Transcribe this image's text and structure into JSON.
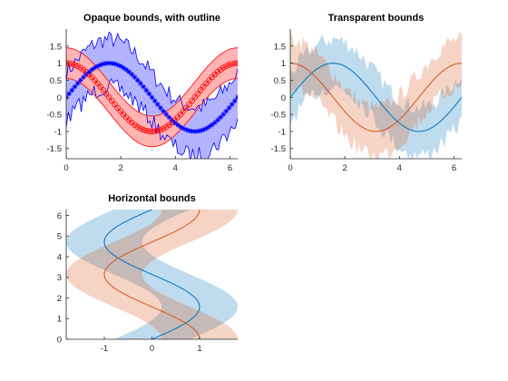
{
  "colors": {
    "blue": "#0000ff",
    "red": "#ff0000",
    "blue_fill": "#b3b3ff",
    "red_fill": "#ffb3b3",
    "mat_blue": "#0072bd",
    "mat_orange": "#d95319",
    "mat_blue_fill": "#bcdcef",
    "mat_orange_fill": "#f7d1c3"
  },
  "chart_data": [
    {
      "type": "line",
      "title": "Opaque bounds, with outline",
      "xlim": [
        0,
        6.283
      ],
      "ylim": [
        -1.8,
        2.0
      ],
      "xticks": [
        "0",
        "2",
        "4",
        "6"
      ],
      "yticks": [
        "-1.5",
        "-1",
        "-0.5",
        "0",
        "0.5",
        "1",
        "1.5"
      ],
      "band_style": "opaque-with-outline",
      "series": [
        {
          "function": "sin(x)",
          "marker": "star",
          "color": "blue",
          "band": "noisy, half-width approx 0.5–0.9",
          "x": [
            0,
            0.314,
            0.628,
            0.942,
            1.257,
            1.571,
            1.885,
            2.199,
            2.513,
            2.827,
            3.142,
            3.456,
            3.77,
            4.084,
            4.398,
            4.712,
            5.027,
            5.341,
            5.655,
            5.969,
            6.283
          ],
          "y": [
            0,
            0.31,
            0.59,
            0.81,
            0.95,
            1.0,
            0.95,
            0.81,
            0.59,
            0.31,
            0,
            -0.31,
            -0.59,
            -0.81,
            -0.95,
            -1.0,
            -0.95,
            -0.81,
            -0.59,
            -0.31,
            0
          ]
        },
        {
          "function": "cos(x)",
          "marker": "circle",
          "color": "red",
          "band": "smooth, half-width approx 0.45",
          "x": [
            0,
            0.314,
            0.628,
            0.942,
            1.257,
            1.571,
            1.885,
            2.199,
            2.513,
            2.827,
            3.142,
            3.456,
            3.77,
            4.084,
            4.398,
            4.712,
            5.027,
            5.341,
            5.655,
            5.969,
            6.283
          ],
          "y": [
            1.0,
            0.95,
            0.81,
            0.59,
            0.31,
            0,
            -0.31,
            -0.59,
            -0.81,
            -0.95,
            -1.0,
            -0.95,
            -0.81,
            -0.59,
            -0.31,
            0,
            0.31,
            0.59,
            0.81,
            0.95,
            1.0
          ]
        }
      ]
    },
    {
      "type": "line",
      "title": "Transparent bounds",
      "xlim": [
        0,
        6.283
      ],
      "ylim": [
        -1.8,
        2.0
      ],
      "xticks": [
        "0",
        "2",
        "4",
        "6"
      ],
      "yticks": [
        "-1.5",
        "-1",
        "-0.5",
        "0",
        "0.5",
        "1",
        "1.5"
      ],
      "band_style": "transparent",
      "series": [
        {
          "function": "sin(x)",
          "color": "mat_blue",
          "band": "noisy, half-width approx 0.5–0.9"
        },
        {
          "function": "cos(x)",
          "color": "mat_orange",
          "band": "noisy, half-width approx 0.5–0.9"
        }
      ]
    },
    {
      "type": "line",
      "title": "Horizontal bounds",
      "orientation": "horizontal",
      "xlim": [
        -1.8,
        1.8
      ],
      "ylim": [
        0,
        6.283
      ],
      "xticks": [
        "-1",
        "0",
        "1"
      ],
      "yticks": [
        "0",
        "1",
        "2",
        "3",
        "4",
        "5",
        "6"
      ],
      "band_style": "transparent-horizontal",
      "series": [
        {
          "function": "x = sin(y)",
          "color": "mat_blue",
          "band": "smooth, half-width approx 0.8"
        },
        {
          "function": "x = cos(y)",
          "color": "mat_orange",
          "band": "smooth, half-width approx 0.8"
        }
      ]
    }
  ]
}
